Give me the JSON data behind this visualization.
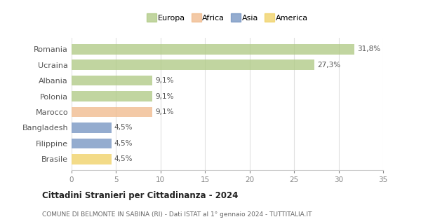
{
  "categories": [
    "Romania",
    "Ucraina",
    "Albania",
    "Polonia",
    "Marocco",
    "Bangladesh",
    "Filippine",
    "Brasile"
  ],
  "values": [
    31.8,
    27.3,
    9.1,
    9.1,
    9.1,
    4.5,
    4.5,
    4.5
  ],
  "labels": [
    "31,8%",
    "27,3%",
    "9,1%",
    "9,1%",
    "9,1%",
    "4,5%",
    "4,5%",
    "4,5%"
  ],
  "colors": [
    "#adc880",
    "#adc880",
    "#adc880",
    "#adc880",
    "#f0b888",
    "#7090c0",
    "#7090c0",
    "#f0d060"
  ],
  "legend_labels": [
    "Europa",
    "Africa",
    "Asia",
    "America"
  ],
  "legend_colors": [
    "#adc880",
    "#f0b888",
    "#7090c0",
    "#f0d060"
  ],
  "title": "Cittadini Stranieri per Cittadinanza - 2024",
  "subtitle": "COMUNE DI BELMONTE IN SABINA (RI) - Dati ISTAT al 1° gennaio 2024 - TUTTITALIA.IT",
  "xlim": [
    0,
    35
  ],
  "xticks": [
    0,
    5,
    10,
    15,
    20,
    25,
    30,
    35
  ],
  "background_color": "#ffffff",
  "grid_color": "#e0e0e0",
  "bar_height": 0.65
}
